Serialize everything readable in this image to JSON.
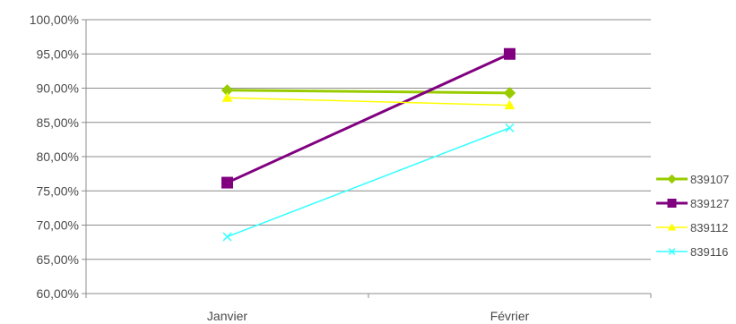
{
  "chart_data": {
    "type": "line",
    "title": "",
    "xlabel": "",
    "ylabel": "",
    "categories": [
      "Janvier",
      "Février"
    ],
    "ylim": [
      60,
      100
    ],
    "yticks": [
      "60,00%",
      "65,00%",
      "70,00%",
      "75,00%",
      "80,00%",
      "85,00%",
      "90,00%",
      "95,00%",
      "100,00%"
    ],
    "grid": "horizontal",
    "legend_position": "right",
    "series": [
      {
        "name": "839107",
        "values": [
          89.7,
          89.3
        ],
        "color": "#99cc00",
        "marker": "diamond"
      },
      {
        "name": "839127",
        "values": [
          76.2,
          95.0
        ],
        "color": "#800080",
        "marker": "square"
      },
      {
        "name": "839112",
        "values": [
          88.6,
          87.5
        ],
        "color": "#ffff00",
        "marker": "triangle"
      },
      {
        "name": "839116",
        "values": [
          68.3,
          84.2
        ],
        "color": "#33ffff",
        "marker": "x"
      }
    ]
  }
}
